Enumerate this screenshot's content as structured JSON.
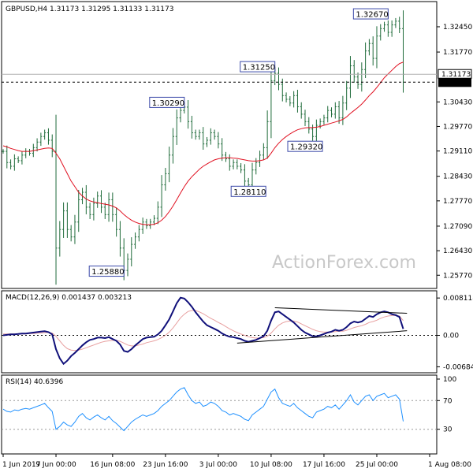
{
  "chart_data": {
    "type": "candlestick-line",
    "header": "GBPUSD,H4  1.31173 1.31295 1.31133 1.31173",
    "watermark": "ActionForex.com",
    "price": {
      "ylim": [
        1.255,
        1.33
      ],
      "y_ticks": [
        "1.32450",
        "1.31770",
        "1.30430",
        "1.29770",
        "1.29110",
        "1.28430",
        "1.27770",
        "1.27090",
        "1.26430",
        "1.25770"
      ],
      "y_tick_values": [
        1.3245,
        1.3177,
        1.3043,
        1.2977,
        1.2911,
        1.2843,
        1.2777,
        1.2709,
        1.2643,
        1.2577
      ],
      "current_price_label": "1.31173",
      "current_price": 1.31173,
      "support_label": "1.30960",
      "support": 1.3096,
      "close": [
        1.291,
        1.288,
        1.287,
        1.289,
        1.2885,
        1.29,
        1.291,
        1.2905,
        1.292,
        1.2935,
        1.295,
        1.296,
        1.294,
        1.291,
        1.265,
        1.27,
        1.275,
        1.27,
        1.268,
        1.272,
        1.278,
        1.28,
        1.276,
        1.274,
        1.277,
        1.279,
        1.276,
        1.274,
        1.278,
        1.274,
        1.27,
        1.265,
        1.259,
        1.262,
        1.266,
        1.268,
        1.27,
        1.272,
        1.271,
        1.272,
        1.273,
        1.276,
        1.282,
        1.285,
        1.29,
        1.295,
        1.3,
        1.302,
        1.3029,
        1.299,
        1.296,
        1.295,
        1.296,
        1.293,
        1.294,
        1.296,
        1.295,
        1.293,
        1.29,
        1.289,
        1.287,
        1.288,
        1.287,
        1.286,
        1.283,
        1.282,
        1.286,
        1.288,
        1.29,
        1.292,
        1.299,
        1.31,
        1.312,
        1.309,
        1.306,
        1.305,
        1.304,
        1.306,
        1.303,
        1.301,
        1.299,
        1.297,
        1.295,
        1.298,
        1.299,
        1.3,
        1.302,
        1.301,
        1.303,
        1.3,
        1.304,
        1.308,
        1.314,
        1.311,
        1.309,
        1.313,
        1.318,
        1.32,
        1.316,
        1.322,
        1.324,
        1.325,
        1.323,
        1.325,
        1.326,
        1.324,
        1.3117
      ],
      "ma": [
        1.2925,
        1.2922,
        1.2918,
        1.2915,
        1.2912,
        1.291,
        1.291,
        1.291,
        1.2912,
        1.2914,
        1.2916,
        1.2918,
        1.2919,
        1.2918,
        1.2905,
        1.289,
        1.287,
        1.285,
        1.283,
        1.2815,
        1.28,
        1.279,
        1.2782,
        1.2777,
        1.2774,
        1.2772,
        1.277,
        1.2768,
        1.2766,
        1.2763,
        1.2758,
        1.275,
        1.274,
        1.2732,
        1.2725,
        1.272,
        1.2716,
        1.2714,
        1.2713,
        1.2713,
        1.2714,
        1.2718,
        1.2725,
        1.2735,
        1.2748,
        1.2763,
        1.278,
        1.2798,
        1.2815,
        1.283,
        1.2842,
        1.2852,
        1.2862,
        1.287,
        1.2876,
        1.2882,
        1.2887,
        1.289,
        1.2892,
        1.2893,
        1.2893,
        1.2892,
        1.2891,
        1.2889,
        1.2887,
        1.2885,
        1.2884,
        1.2884,
        1.2885,
        1.2887,
        1.2892,
        1.2905,
        1.292,
        1.2932,
        1.2942,
        1.295,
        1.2957,
        1.2963,
        1.2968,
        1.2971,
        1.2973,
        1.2974,
        1.2974,
        1.2975,
        1.2977,
        1.298,
        1.2983,
        1.2986,
        1.2989,
        1.2992,
        1.2996,
        1.3003,
        1.3012,
        1.302,
        1.3028,
        1.3037,
        1.3048,
        1.306,
        1.307,
        1.3082,
        1.3095,
        1.3108,
        1.3118,
        1.3128,
        1.3138,
        1.3146,
        1.315
      ],
      "annotations": [
        {
          "label": "1.32670",
          "value": 1.3267,
          "bar": 102
        },
        {
          "label": "1.31250",
          "value": 1.3125,
          "bar": 72
        },
        {
          "label": "1.30290",
          "value": 1.3029,
          "bar": 48
        },
        {
          "label": "1.29320",
          "value": 1.2932,
          "bar": 80
        },
        {
          "label": "1.28110",
          "value": 1.2811,
          "bar": 65
        },
        {
          "label": "1.25880",
          "value": 1.2588,
          "bar": 32
        }
      ]
    },
    "macd": {
      "title": "MACD(12,26,9) 0.001437 0.003213",
      "ylim": [
        -0.0078,
        0.009
      ],
      "y_ticks": [
        "0.008118",
        "0.00",
        "-0.006844"
      ],
      "y_tick_values": [
        0.008118,
        0.0,
        -0.006844
      ],
      "main": [
        0.0,
        0.0001,
        0.0002,
        0.0002,
        0.0003,
        0.0004,
        0.0004,
        0.0005,
        0.0006,
        0.0007,
        0.0008,
        0.0009,
        0.0007,
        0.0002,
        -0.003,
        -0.005,
        -0.0062,
        -0.0055,
        -0.0045,
        -0.0038,
        -0.003,
        -0.0022,
        -0.0015,
        -0.001,
        -0.0008,
        -0.0005,
        -0.0005,
        -0.0006,
        -0.0004,
        -0.0008,
        -0.0012,
        -0.002,
        -0.0034,
        -0.0036,
        -0.003,
        -0.0022,
        -0.0015,
        -0.0008,
        -0.0005,
        -0.0004,
        -0.0003,
        0.0002,
        0.001,
        0.0022,
        0.0035,
        0.0052,
        0.007,
        0.0082,
        0.008,
        0.0072,
        0.0062,
        0.005,
        0.004,
        0.003,
        0.0022,
        0.0018,
        0.0014,
        0.001,
        0.0004,
        0.0,
        -0.0003,
        -0.0004,
        -0.0006,
        -0.0008,
        -0.0012,
        -0.0014,
        -0.0012,
        -0.001,
        -0.0006,
        -0.0002,
        0.001,
        0.0032,
        0.005,
        0.0052,
        0.0046,
        0.004,
        0.0034,
        0.0028,
        0.002,
        0.0012,
        0.0006,
        0.0002,
        -0.0002,
        -0.0002,
        0.0,
        0.0003,
        0.0006,
        0.0008,
        0.0012,
        0.001,
        0.0012,
        0.0018,
        0.0026,
        0.003,
        0.0028,
        0.003,
        0.0036,
        0.0042,
        0.004,
        0.0046,
        0.005,
        0.0052,
        0.005,
        0.0046,
        0.0044,
        0.004,
        0.0014
      ],
      "signal": [
        0.0003,
        0.0003,
        0.0003,
        0.0003,
        0.0003,
        0.0003,
        0.0003,
        0.0004,
        0.0004,
        0.0005,
        0.0005,
        0.0006,
        0.0006,
        0.0005,
        -0.0002,
        -0.0012,
        -0.0022,
        -0.0029,
        -0.0032,
        -0.0033,
        -0.0032,
        -0.003,
        -0.0027,
        -0.0024,
        -0.0021,
        -0.0018,
        -0.0015,
        -0.0013,
        -0.0012,
        -0.0011,
        -0.0011,
        -0.0013,
        -0.0017,
        -0.0021,
        -0.0023,
        -0.0023,
        -0.0021,
        -0.0019,
        -0.0016,
        -0.0014,
        -0.0012,
        -0.0009,
        -0.0005,
        0.0,
        0.0007,
        0.0016,
        0.0027,
        0.0038,
        0.0046,
        0.0052,
        0.0054,
        0.0054,
        0.0051,
        0.0047,
        0.0042,
        0.0037,
        0.0033,
        0.0028,
        0.0024,
        0.0019,
        0.0014,
        0.001,
        0.0006,
        0.0003,
        0.0,
        -0.0003,
        -0.0005,
        -0.0006,
        -0.0006,
        -0.0005,
        -0.0002,
        0.0005,
        0.0014,
        0.0022,
        0.0027,
        0.003,
        0.0031,
        0.0031,
        0.0029,
        0.0025,
        0.0021,
        0.0017,
        0.0013,
        0.001,
        0.0008,
        0.0007,
        0.0007,
        0.0007,
        0.0008,
        0.0009,
        0.0009,
        0.0011,
        0.0014,
        0.0017,
        0.0019,
        0.0021,
        0.0024,
        0.0028,
        0.003,
        0.0033,
        0.0037,
        0.004,
        0.0042,
        0.0043,
        0.0043,
        0.0042,
        0.0032
      ],
      "trendlines": [
        {
          "from_bar": 62,
          "from_value": -0.0017,
          "to_bar": 107,
          "to_value": 0.001
        },
        {
          "from_bar": 72,
          "from_value": 0.006,
          "to_bar": 107,
          "to_value": 0.0048
        }
      ]
    },
    "rsi": {
      "title": "RSI(14) 40.6396",
      "ylim": [
        0,
        100
      ],
      "y_ticks": [
        "100",
        "70",
        "30",
        "0"
      ],
      "y_tick_values": [
        100,
        70,
        30,
        0
      ],
      "levels": [
        70,
        30
      ],
      "values": [
        58,
        55,
        54,
        57,
        56,
        58,
        59,
        58,
        60,
        62,
        64,
        66,
        60,
        55,
        30,
        34,
        40,
        36,
        34,
        40,
        48,
        52,
        46,
        43,
        47,
        50,
        46,
        43,
        48,
        42,
        38,
        33,
        28,
        34,
        40,
        44,
        47,
        50,
        48,
        50,
        52,
        56,
        62,
        66,
        70,
        76,
        82,
        86,
        88,
        78,
        70,
        66,
        68,
        62,
        64,
        68,
        66,
        62,
        56,
        54,
        50,
        52,
        50,
        48,
        44,
        42,
        50,
        54,
        58,
        62,
        72,
        82,
        86,
        74,
        66,
        64,
        62,
        66,
        60,
        56,
        52,
        48,
        46,
        54,
        56,
        58,
        62,
        60,
        64,
        58,
        64,
        70,
        78,
        68,
        64,
        70,
        76,
        78,
        70,
        76,
        78,
        80,
        74,
        76,
        78,
        72,
        41
      ]
    },
    "x_ticks": [
      {
        "label": "1 Jun 2017",
        "bar": 0
      },
      {
        "label": "9 Jun 00:00",
        "bar": 14
      },
      {
        "label": "16 Jun 08:00",
        "bar": 29
      },
      {
        "label": "23 Jun 16:00",
        "bar": 43
      },
      {
        "label": "3 Jul 00:00",
        "bar": 57
      },
      {
        "label": "10 Jul 08:00",
        "bar": 71
      },
      {
        "label": "17 Jul 16:00",
        "bar": 85
      },
      {
        "label": "25 Jul 00:00",
        "bar": 99
      },
      {
        "label": "1 Aug 08:00",
        "bar": 113
      }
    ]
  }
}
